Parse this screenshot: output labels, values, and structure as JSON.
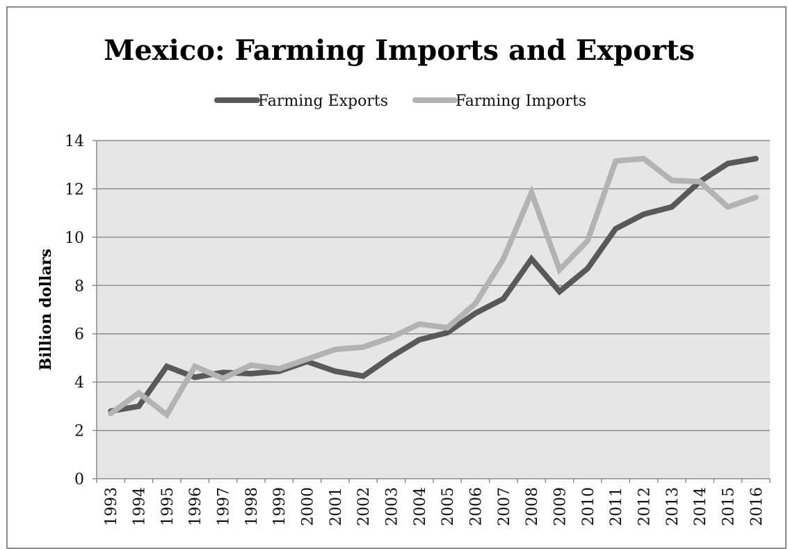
{
  "chart_data": {
    "type": "line",
    "title": "Mexico: Farming Imports and Exports",
    "xlabel": "",
    "ylabel": "Billion dollars",
    "x": [
      "1993",
      "1994",
      "1995",
      "1996",
      "1997",
      "1998",
      "1999",
      "2000",
      "2001",
      "2002",
      "2003",
      "2004",
      "2005",
      "2006",
      "2007",
      "2008",
      "2009",
      "2010",
      "2011",
      "2012",
      "2013",
      "2014",
      "2015",
      "2016"
    ],
    "ylim": [
      0,
      14
    ],
    "yticks": [
      0,
      2,
      4,
      6,
      8,
      10,
      12,
      14
    ],
    "grid": true,
    "legend_position": "top",
    "series": [
      {
        "name": "Farming Exports",
        "color": "#595959",
        "values": [
          2.8,
          3.0,
          4.65,
          4.2,
          4.4,
          4.35,
          4.45,
          4.85,
          4.45,
          4.25,
          5.05,
          5.75,
          6.05,
          6.85,
          7.45,
          9.1,
          7.75,
          8.7,
          10.35,
          10.95,
          11.25,
          12.3,
          13.05,
          13.25
        ]
      },
      {
        "name": "Farming Imports",
        "color": "#b3b3b3",
        "values": [
          2.7,
          3.55,
          2.65,
          4.65,
          4.15,
          4.7,
          4.55,
          4.95,
          5.35,
          5.45,
          5.85,
          6.4,
          6.25,
          7.25,
          9.1,
          11.85,
          8.65,
          9.85,
          13.15,
          13.25,
          12.35,
          12.3,
          11.25,
          11.65
        ]
      }
    ]
  }
}
